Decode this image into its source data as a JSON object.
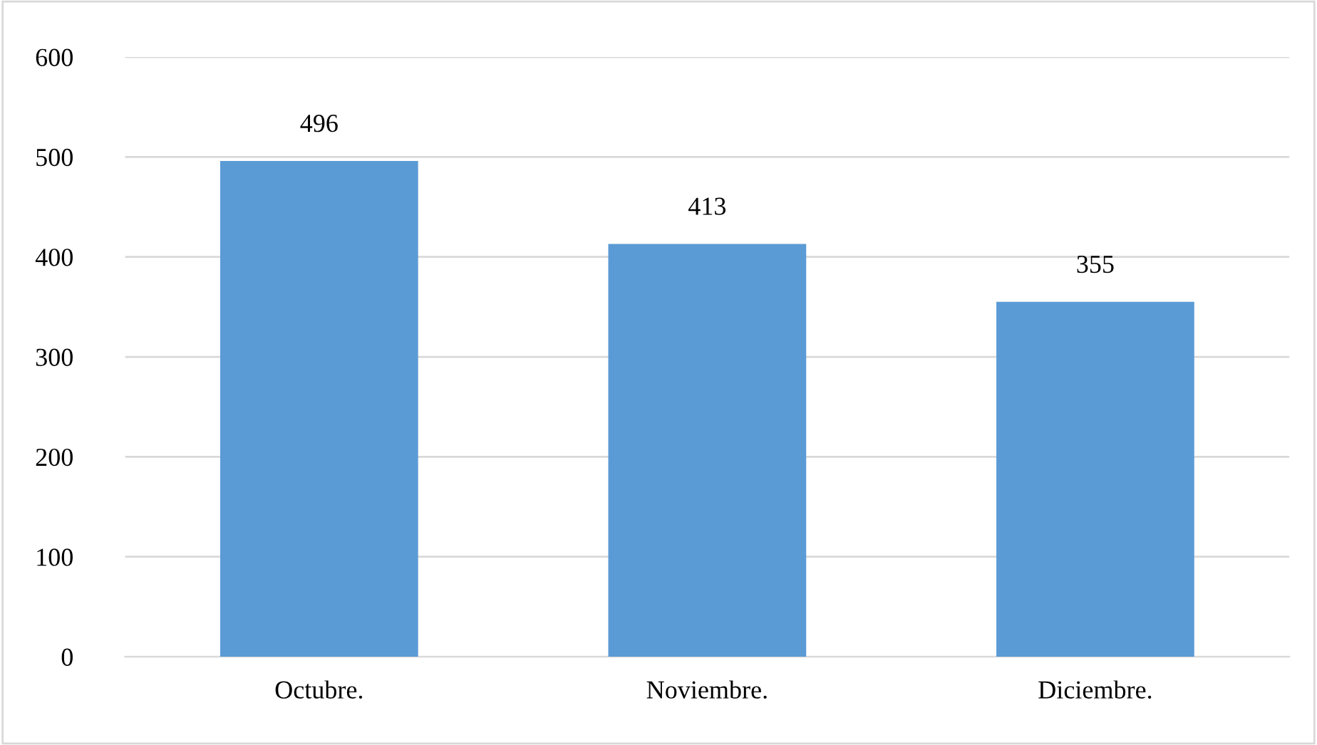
{
  "chart_data": {
    "type": "bar",
    "categories": [
      "Octubre.",
      "Noviembre.",
      "Diciembre."
    ],
    "values": [
      496,
      413,
      355
    ],
    "color": "#5b9bd5",
    "ylim": [
      0,
      600
    ],
    "yticks": [
      0,
      100,
      200,
      300,
      400,
      500,
      600
    ],
    "grid": "y",
    "data_labels": true
  }
}
